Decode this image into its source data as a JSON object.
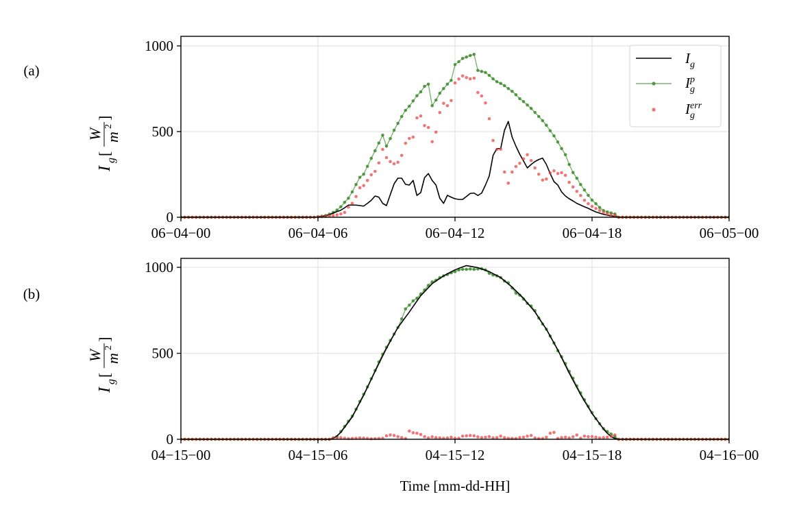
{
  "chart_data": [
    {
      "type": "line",
      "panel_label": "(a)",
      "ylabel": {
        "symbol": "I",
        "sub": "g",
        "num": "W",
        "den": "m",
        "den_sup": "2"
      },
      "xlabel": "",
      "xlim_hours": [
        0,
        24
      ],
      "ylim": [
        0,
        1056
      ],
      "yticks": [
        0,
        500,
        1000
      ],
      "ytick_labels": [
        "0",
        "500",
        "1000"
      ],
      "xticks_hours": [
        0,
        6,
        12,
        18,
        24
      ],
      "xtick_labels": [
        "06−04−00",
        "06−04−06",
        "06−04−12",
        "06−04−18",
        "06−05−00"
      ],
      "grid": true,
      "legend_position": "top-right",
      "sample_step_minutes": 10,
      "series": [
        {
          "name": "I_g",
          "kind": "line",
          "color": "#000000",
          "start_hour": 6.0,
          "values": [
            2,
            5,
            9,
            15,
            24,
            33,
            41,
            55,
            71,
            71,
            71,
            68,
            65,
            81,
            99,
            124,
            117,
            81,
            68,
            132,
            195,
            228,
            228,
            192,
            188,
            215,
            127,
            144,
            231,
            255,
            215,
            188,
            111,
            81,
            128,
            117,
            108,
            104,
            104,
            121,
            139,
            141,
            127,
            141,
            188,
            241,
            361,
            401,
            401,
            508,
            559,
            468,
            415,
            368,
            328,
            288,
            308,
            325,
            337,
            345,
            308,
            255,
            208,
            188,
            148,
            124,
            108,
            95,
            81,
            71,
            61,
            52,
            41,
            31,
            24,
            17,
            12,
            8,
            5
          ]
        },
        {
          "name": "I_g^p",
          "kind": "line+markers",
          "color": "#3d8b2d",
          "start_hour": 6.0,
          "values": [
            3,
            6,
            10,
            18,
            28,
            42,
            61,
            87,
            111,
            148,
            191,
            233,
            251,
            297,
            344,
            388,
            433,
            479,
            415,
            459,
            508,
            548,
            588,
            624,
            648,
            679,
            709,
            732,
            764,
            777,
            651,
            684,
            724,
            751,
            777,
            799,
            891,
            908,
            927,
            935,
            944,
            951,
            857,
            851,
            845,
            828,
            808,
            791,
            781,
            768,
            751,
            735,
            715,
            692,
            675,
            655,
            635,
            612,
            588,
            564,
            537,
            505,
            475,
            439,
            401,
            365,
            308,
            261,
            228,
            191,
            159,
            128,
            100,
            79,
            57,
            39,
            31,
            25,
            19
          ]
        },
        {
          "name": "I_g^err",
          "kind": "markers",
          "color": "#e8413e",
          "start_hour": 6.0,
          "values": [
            2,
            3,
            5,
            8,
            10,
            14,
            19,
            28,
            59,
            81,
            121,
            172,
            185,
            215,
            248,
            268,
            317,
            396,
            348,
            325,
            312,
            321,
            361,
            432,
            460,
            468,
            580,
            591,
            535,
            524,
            441,
            497,
            611,
            665,
            651,
            681,
            784,
            807,
            825,
            815,
            808,
            812,
            728,
            708,
            667,
            575,
            448,
            395,
            397,
            264,
            199,
            264,
            296,
            315,
            341,
            365,
            331,
            288,
            251,
            217,
            223,
            259,
            271,
            255,
            260,
            245,
            204,
            177,
            151,
            127,
            99,
            79,
            63,
            51,
            39,
            28,
            20,
            15,
            11
          ]
        }
      ]
    },
    {
      "type": "line",
      "panel_label": "(b)",
      "ylabel": {
        "symbol": "I",
        "sub": "g",
        "num": "W",
        "den": "m",
        "den_sup": "2"
      },
      "xlabel": "Time [mm-dd-HH]",
      "xlim_hours": [
        0,
        24
      ],
      "ylim": [
        0,
        1052
      ],
      "yticks": [
        0,
        500,
        1000
      ],
      "ytick_labels": [
        "0",
        "500",
        "1000"
      ],
      "xticks_hours": [
        0,
        6,
        12,
        18,
        24
      ],
      "xtick_labels": [
        "04−15−00",
        "04−15−06",
        "04−15−12",
        "04−15−18",
        "04−16−00"
      ],
      "grid": true,
      "sample_step_minutes": 10,
      "series": [
        {
          "name": "I_g",
          "kind": "line",
          "color": "#000000",
          "start_hour": 6.5,
          "values": [
            0,
            5,
            20,
            40,
            70,
            100,
            130,
            172,
            214,
            256,
            302,
            349,
            395,
            440,
            485,
            529,
            570,
            610,
            650,
            680,
            710,
            740,
            772,
            804,
            835,
            858,
            882,
            905,
            920,
            935,
            950,
            962,
            974,
            985,
            994,
            1002,
            1010,
            1006,
            1002,
            998,
            990,
            983,
            975,
            963,
            952,
            940,
            922,
            903,
            885,
            863,
            842,
            820,
            793,
            767,
            740,
            707,
            673,
            640,
            600,
            560,
            520,
            475,
            430,
            385,
            343,
            302,
            260,
            223,
            187,
            150,
            120,
            90,
            60,
            35,
            15,
            5
          ]
        },
        {
          "name": "I_g^p",
          "kind": "line+markers",
          "color": "#3d8b2d",
          "start_hour": 6.6667,
          "values": [
            8,
            15,
            45,
            75,
            105,
            135,
            175,
            220,
            262,
            305,
            352,
            400,
            450,
            495,
            535,
            575,
            612,
            650,
            700,
            758,
            780,
            805,
            820,
            845,
            868,
            895,
            915,
            925,
            940,
            950,
            958,
            968,
            975,
            985,
            988,
            988,
            990,
            988,
            990,
            992,
            985,
            965,
            955,
            950,
            940,
            920,
            910,
            880,
            850,
            838,
            815,
            790,
            775,
            748,
            705,
            670,
            640,
            600,
            560,
            515,
            480,
            440,
            395,
            355,
            310,
            270,
            230,
            192,
            155,
            120,
            90,
            62,
            45,
            30,
            15
          ]
        },
        {
          "name": "I_g^err",
          "kind": "markers",
          "color": "#e8413e",
          "start_hour": 6.6667,
          "values": [
            5,
            8,
            10,
            6,
            4,
            5,
            6,
            8,
            7,
            5,
            3,
            4,
            5,
            6,
            20,
            25,
            22,
            15,
            10,
            5,
            48,
            38,
            35,
            28,
            15,
            8,
            14,
            10,
            8,
            6,
            8,
            12,
            6,
            6,
            18,
            20,
            22,
            20,
            14,
            10,
            12,
            15,
            8,
            10,
            18,
            10,
            6,
            5,
            5,
            10,
            12,
            18,
            22,
            8,
            5,
            5,
            12,
            35,
            40,
            5,
            10,
            12,
            8,
            14,
            25,
            6,
            18,
            15,
            15,
            12,
            8,
            10,
            12,
            18,
            25
          ]
        }
      ]
    }
  ],
  "legend": {
    "items": [
      {
        "symbol": "I",
        "sub": "g",
        "sup": ""
      },
      {
        "symbol": "I",
        "sub": "g",
        "sup": "p"
      },
      {
        "symbol": "I",
        "sub": "g",
        "sup": "err"
      }
    ]
  }
}
